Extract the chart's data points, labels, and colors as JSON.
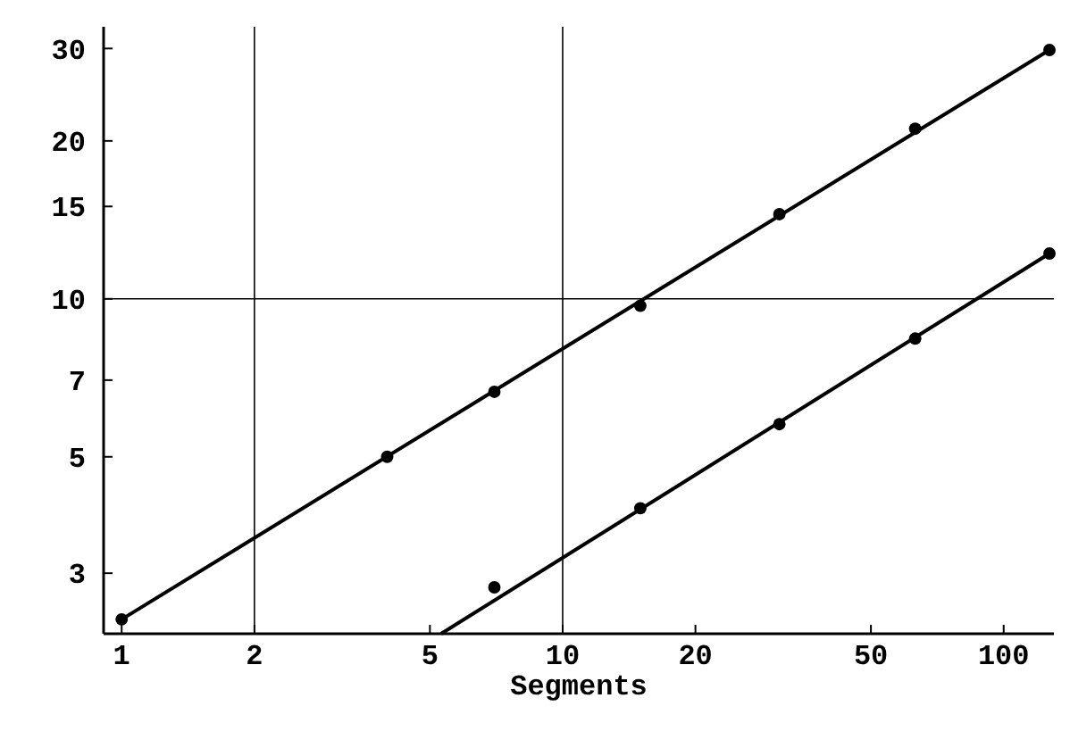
{
  "chart_data": {
    "type": "scatter",
    "xlabel": "Segments",
    "log": "xy",
    "xlim": [
      0.91,
      130
    ],
    "ylim": [
      2.3,
      33
    ],
    "xticks": [
      1,
      2,
      5,
      10,
      20,
      50,
      100
    ],
    "yticks": [
      3,
      5,
      7,
      10,
      15,
      20,
      30
    ],
    "ref_lines": [
      {
        "axis": "x",
        "value": 2,
        "color": "#000000"
      },
      {
        "axis": "x",
        "value": 10,
        "color": "#000000"
      },
      {
        "axis": "y",
        "value": 10,
        "color": "#000000"
      }
    ],
    "series": [
      {
        "marker": "circle",
        "color": "#000000",
        "x": [
          1,
          4,
          7,
          15,
          31,
          63,
          127
        ],
        "values": [
          2.45,
          5.0,
          6.65,
          9.7,
          14.5,
          21.1,
          29.8
        ]
      },
      {
        "marker": "circle",
        "color": "#000000",
        "x": [
          7,
          15,
          31,
          63,
          127
        ],
        "values": [
          2.82,
          3.99,
          5.77,
          8.4,
          12.2
        ]
      },
      {
        "type": "line",
        "color": "#000000",
        "x": [
          1,
          127
        ],
        "values": [
          2.45,
          29.8
        ]
      },
      {
        "type": "line",
        "color": "#000000",
        "x": [
          5.3,
          127
        ],
        "values": [
          2.3,
          12.2
        ]
      }
    ]
  }
}
